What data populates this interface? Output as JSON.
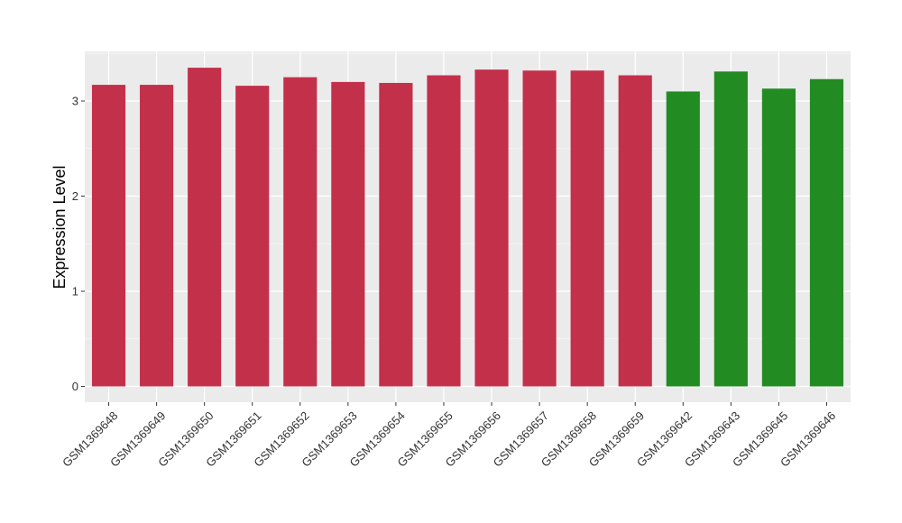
{
  "chart_data": {
    "type": "bar",
    "title": "",
    "xlabel": "",
    "ylabel": "Expression Level",
    "ylim": [
      -0.2,
      3.5
    ],
    "yticks": [
      0,
      1,
      2,
      3
    ],
    "grid": true,
    "panel_background": "#EBEBEB",
    "categories": [
      "GSM1369648",
      "GSM1369649",
      "GSM1369650",
      "GSM1369651",
      "GSM1369652",
      "GSM1369653",
      "GSM1369654",
      "GSM1369655",
      "GSM1369656",
      "GSM1369657",
      "GSM1369658",
      "GSM1369659",
      "GSM1369642",
      "GSM1369643",
      "GSM1369645",
      "GSM1369646"
    ],
    "values": [
      3.17,
      3.17,
      3.35,
      3.16,
      3.25,
      3.2,
      3.19,
      3.27,
      3.33,
      3.32,
      3.32,
      3.27,
      3.1,
      3.31,
      3.13,
      3.23
    ],
    "colors": [
      "#C3304A",
      "#C3304A",
      "#C3304A",
      "#C3304A",
      "#C3304A",
      "#C3304A",
      "#C3304A",
      "#C3304A",
      "#C3304A",
      "#C3304A",
      "#C3304A",
      "#C3304A",
      "#228B22",
      "#228B22",
      "#228B22",
      "#228B22"
    ]
  }
}
